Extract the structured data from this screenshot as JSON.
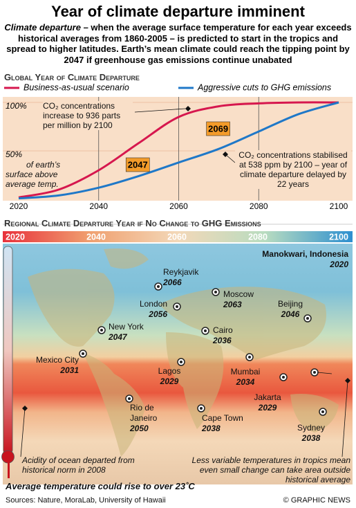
{
  "header": {
    "title": "Year of climate departure imminent",
    "intro_term": "Climate departure",
    "intro": " – when the average surface temperature for each year exceeds historical averages from 1860-2005 – is predicted to start in the tropics and spread to higher latitudes. Earth’s mean climate could reach the tipping point by 2047 if greenhouse gas emissions continue unabated"
  },
  "chart_data": {
    "type": "line",
    "title": "Global Year of Climate Departure",
    "x": [
      2020,
      2030,
      2040,
      2050,
      2060,
      2070,
      2080,
      2090,
      2100
    ],
    "series": [
      {
        "name": "Business-as-usual scenario",
        "color": "#d6174e",
        "values": [
          2,
          10,
          30,
          58,
          85,
          96,
          99,
          100,
          100
        ]
      },
      {
        "name": "Aggressive cuts to GHG emissions",
        "color": "#1f78c8",
        "values": [
          1,
          4,
          12,
          24,
          38,
          52,
          70,
          88,
          100
        ]
      }
    ],
    "xlim": [
      2020,
      2100
    ],
    "xticks": [
      2020,
      2040,
      2060,
      2080,
      2100
    ],
    "ylim": [
      0,
      100
    ],
    "yticks": [
      {
        "value": 50,
        "label": "50%"
      },
      {
        "value": 100,
        "label": "100%"
      }
    ],
    "ylabel": "of earth’s surface above average temp.",
    "callouts": [
      2047,
      2069
    ],
    "annotations": [
      "CO₂ concentrations increase to 936 parts per million by 2100",
      "CO₂ concentrations stabilised at 538 ppm by 2100 – year of climate departure delayed by 22 years"
    ],
    "grid": true
  },
  "map": {
    "title": "Regional Climate Departure Year if No Change to GHG Emissions",
    "scale": [
      2020,
      2040,
      2060,
      2080,
      2100
    ],
    "cities": [
      {
        "name": "Reykjavik",
        "year": 2066
      },
      {
        "name": "London",
        "year": 2056
      },
      {
        "name": "Moscow",
        "year": 2063
      },
      {
        "name": "Beijing",
        "year": 2046
      },
      {
        "name": "New York",
        "year": 2047
      },
      {
        "name": "Cairo",
        "year": 2036
      },
      {
        "name": "Mexico City",
        "year": 2031
      },
      {
        "name": "Lagos",
        "year": 2029
      },
      {
        "name": "Mumbai",
        "year": 2034
      },
      {
        "name": "Manokwari, Indonesia",
        "year": 2020
      },
      {
        "name": "Jakarta",
        "year": 2029
      },
      {
        "name": "Rio de Janeiro",
        "year": 2050
      },
      {
        "name": "Cape Town",
        "year": 2038
      },
      {
        "name": "Sydney",
        "year": 2038
      }
    ],
    "notes": [
      "Acidity of ocean departed from historical norm in 2008",
      "Less variable temperatures in tropics mean even small change can take area outside historical average",
      "Average temperature could rise to over 23˚C"
    ]
  },
  "footer": {
    "sources": "Sources: Nature, MoraLab, University of Hawaii",
    "credit": "© GRAPHIC NEWS"
  }
}
